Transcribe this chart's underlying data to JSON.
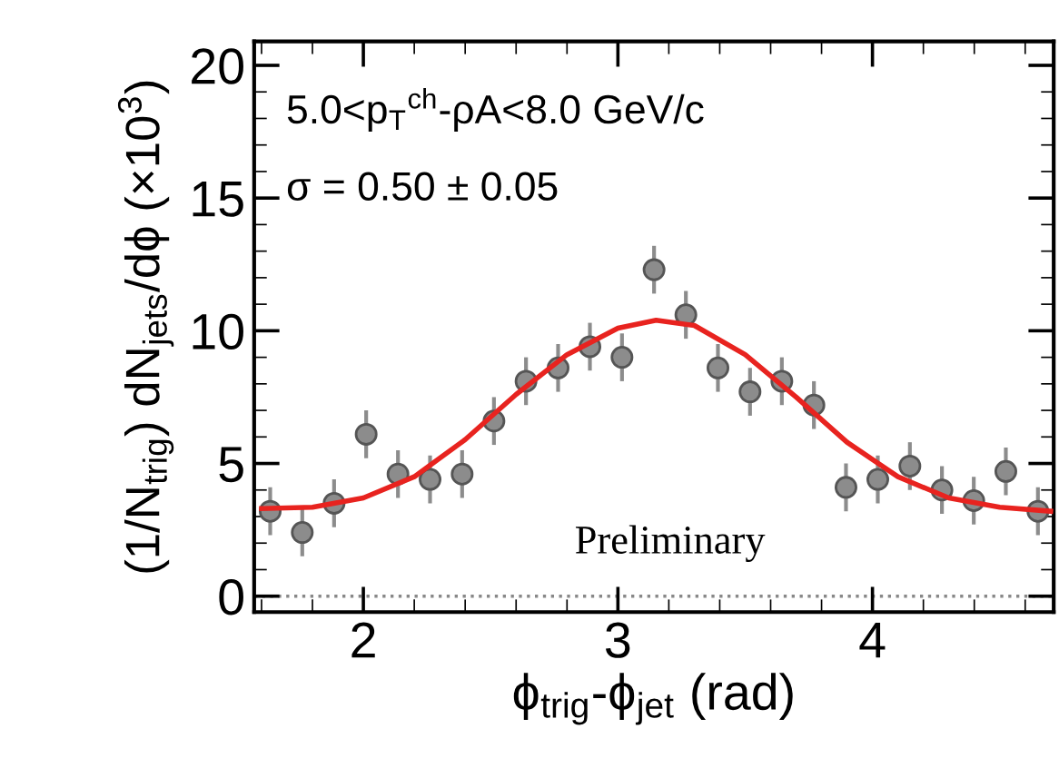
{
  "chart_data": {
    "type": "scatter",
    "xlabel": "ϕ$_{trig}$-ϕ$_{jet}$ (rad)",
    "ylabel": "(1/N$_{trig}$) dN$_{jets}$/dϕ (×10$^{3}$)",
    "annotations": [
      "5.0<p$_{T}$$^{ch}$-ρA<8.0 GeV/c",
      "σ = 0.50 ± 0.05",
      "Preliminary"
    ],
    "xlim": [
      1.571,
      4.712
    ],
    "xticks": [
      2,
      3,
      4
    ],
    "ylim": [
      -0.6,
      20.9
    ],
    "yticks": [
      0,
      5,
      10,
      15,
      20
    ],
    "ref_lines": [
      {
        "axis": "y",
        "value": 0,
        "color": "#888888",
        "line_style": "dotted"
      }
    ],
    "series": [
      {
        "color": "#8c8c8c",
        "marker": "circle",
        "x": [
          1.634,
          1.76,
          1.885,
          2.011,
          2.136,
          2.262,
          2.388,
          2.513,
          2.639,
          2.765,
          2.89,
          3.016,
          3.142,
          3.267,
          3.393,
          3.519,
          3.644,
          3.77,
          3.896,
          4.021,
          4.147,
          4.273,
          4.398,
          4.524,
          4.65
        ],
        "values": [
          3.2,
          2.4,
          3.5,
          6.1,
          4.6,
          4.4,
          4.6,
          6.6,
          8.1,
          8.6,
          9.4,
          9.0,
          12.3,
          10.6,
          8.6,
          7.7,
          8.1,
          7.2,
          4.1,
          4.4,
          4.9,
          4.0,
          3.6,
          4.7,
          3.2
        ],
        "errors": [
          0.9,
          0.9,
          0.9,
          0.9,
          0.9,
          0.9,
          0.9,
          0.9,
          0.9,
          0.9,
          0.9,
          0.9,
          0.9,
          0.9,
          0.9,
          0.9,
          0.9,
          0.9,
          0.9,
          0.9,
          0.9,
          0.9,
          0.9,
          0.9,
          0.9
        ]
      },
      {
        "type": "line",
        "color": "#e8231f",
        "line_style": "solid",
        "x": [
          1.6,
          1.8,
          2.0,
          2.2,
          2.4,
          2.6,
          2.8,
          3.0,
          3.15,
          3.3,
          3.5,
          3.7,
          3.9,
          4.1,
          4.3,
          4.5,
          4.7
        ],
        "values": [
          3.3,
          3.35,
          3.7,
          4.5,
          5.9,
          7.6,
          9.1,
          10.1,
          10.4,
          10.2,
          9.1,
          7.5,
          5.8,
          4.5,
          3.7,
          3.35,
          3.2
        ]
      }
    ]
  }
}
